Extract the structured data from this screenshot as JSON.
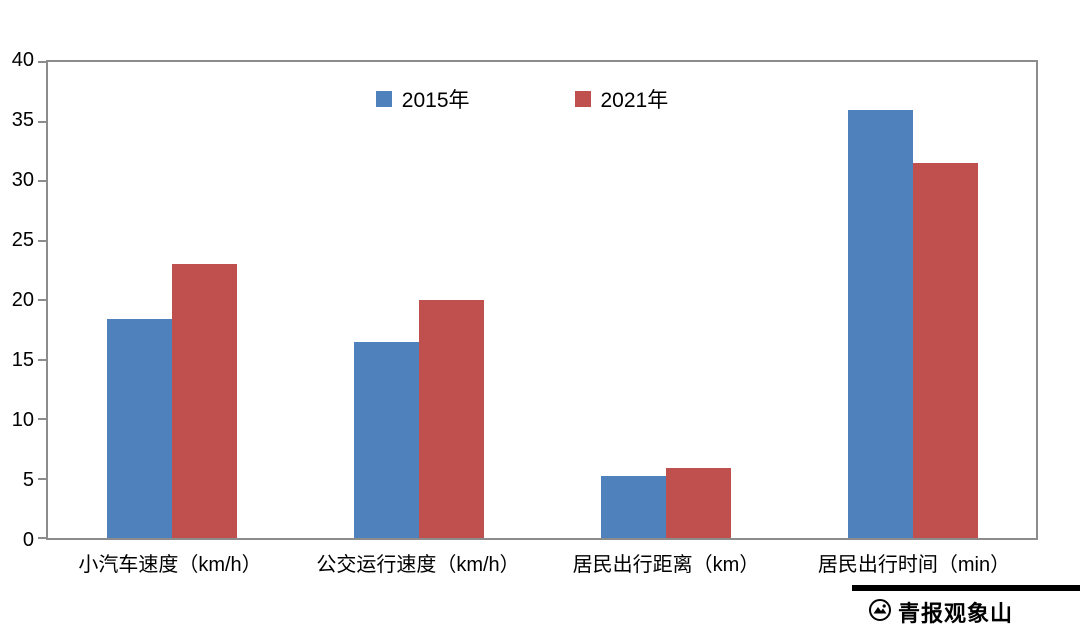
{
  "chart_data": {
    "type": "bar",
    "categories": [
      "小汽车速度（km/h）",
      "公交运行速度（km/h）",
      "居民出行距离（km）",
      "居民出行时间（min）"
    ],
    "series": [
      {
        "name": "2015年",
        "color": "#4F81BD",
        "values": [
          18.4,
          16.5,
          5.2,
          36.0
        ]
      },
      {
        "name": "2021年",
        "color": "#C0504D",
        "values": [
          23.0,
          20.0,
          5.9,
          31.5
        ]
      }
    ],
    "ylim": [
      0,
      40
    ],
    "yticks": [
      0,
      5,
      10,
      15,
      20,
      25,
      30,
      35,
      40
    ],
    "grid": false,
    "legend_position": "top-center",
    "plot_border_color": "#8c8c8c"
  },
  "watermark": {
    "text": "青报观象山"
  }
}
